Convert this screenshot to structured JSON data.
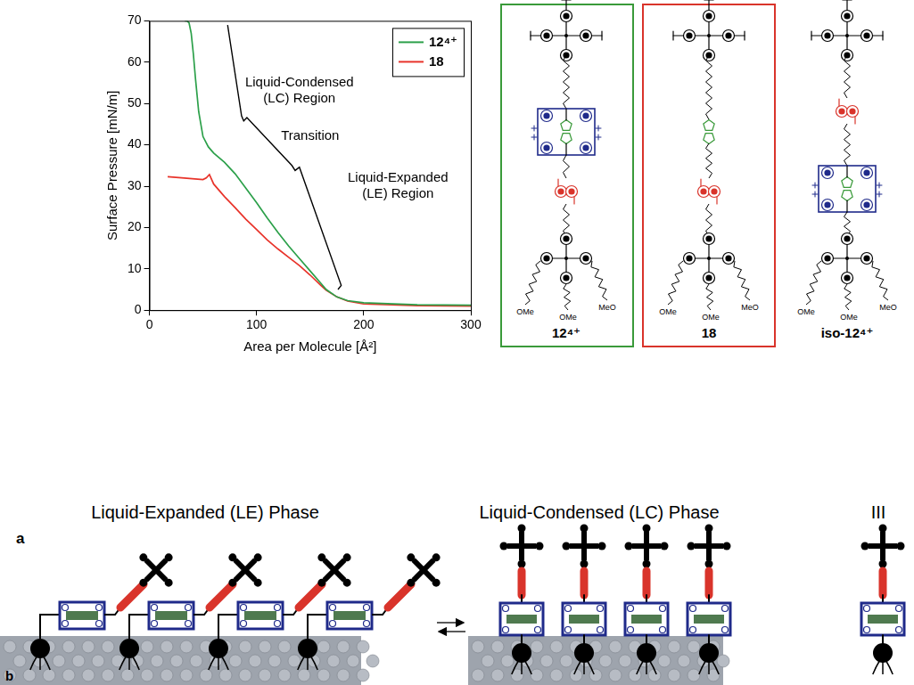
{
  "chart_data": {
    "type": "line",
    "x_label": "Area per Molecule [Å²]",
    "y_label": "Surface Pressure [mN/m]",
    "xlim": [
      0,
      300
    ],
    "xticks": [
      0,
      100,
      200,
      300
    ],
    "ylim": [
      0,
      70
    ],
    "yticks": [
      0,
      10,
      20,
      30,
      40,
      50,
      60,
      70
    ],
    "grid": false,
    "legend": "top right",
    "series": [
      {
        "name": "12⁴⁺",
        "color": "#2ca04a",
        "x": [
          300,
          250,
          200,
          185,
          175,
          165,
          160,
          150,
          140,
          130,
          120,
          110,
          100,
          90,
          80,
          70,
          60,
          55,
          50,
          46,
          43,
          41,
          39,
          37,
          35,
          33
        ],
        "values": [
          1.2,
          1.3,
          1.8,
          2.3,
          3.2,
          5,
          6.5,
          9.5,
          12.5,
          15.5,
          18.8,
          22.3,
          26,
          29.5,
          33,
          35.8,
          38,
          39.5,
          42,
          48,
          56,
          62,
          67,
          69.5,
          70,
          70
        ]
      },
      {
        "name": "18",
        "color": "#e8332a",
        "x": [
          300,
          250,
          200,
          185,
          175,
          165,
          160,
          150,
          140,
          130,
          120,
          110,
          100,
          90,
          80,
          70,
          60,
          56,
          53,
          50,
          40,
          30,
          17
        ],
        "values": [
          1,
          1.1,
          1.5,
          2.2,
          3.2,
          4.8,
          6,
          8.5,
          10.8,
          12.8,
          14.8,
          17,
          19.5,
          22,
          24.8,
          27.5,
          30.5,
          32.8,
          32,
          31.6,
          31.8,
          32,
          32.3
        ]
      },
      {
        "color": "#000000",
        "x": [
          73,
          86,
          88,
          91,
          133,
          136,
          140,
          179,
          176
        ],
        "values": [
          69,
          47,
          45.8,
          46.6,
          35,
          33.8,
          34.6,
          6,
          5
        ]
      }
    ],
    "annotations": [
      {
        "text": [
          "Liquid-Condensed",
          "(LC) Region"
        ],
        "x": 140,
        "y": 53
      },
      {
        "text": [
          "Transition"
        ],
        "x": 150,
        "y": 42
      },
      {
        "text": [
          "Liquid-Expanded",
          "(LE) Region"
        ],
        "x": 232,
        "y": 30
      }
    ]
  },
  "structures": {
    "labels": [
      "12⁴⁺",
      "18",
      "iso-12⁴⁺"
    ],
    "stopper_labels": [
      "OMe",
      "OMe",
      "MeO"
    ]
  },
  "schematic": {
    "panel_labels": [
      "a",
      "b"
    ],
    "phases": [
      "Liquid-Expanded (LE) Phase",
      "Liquid-Condensed (LC) Phase"
    ],
    "extra_label": "III"
  }
}
